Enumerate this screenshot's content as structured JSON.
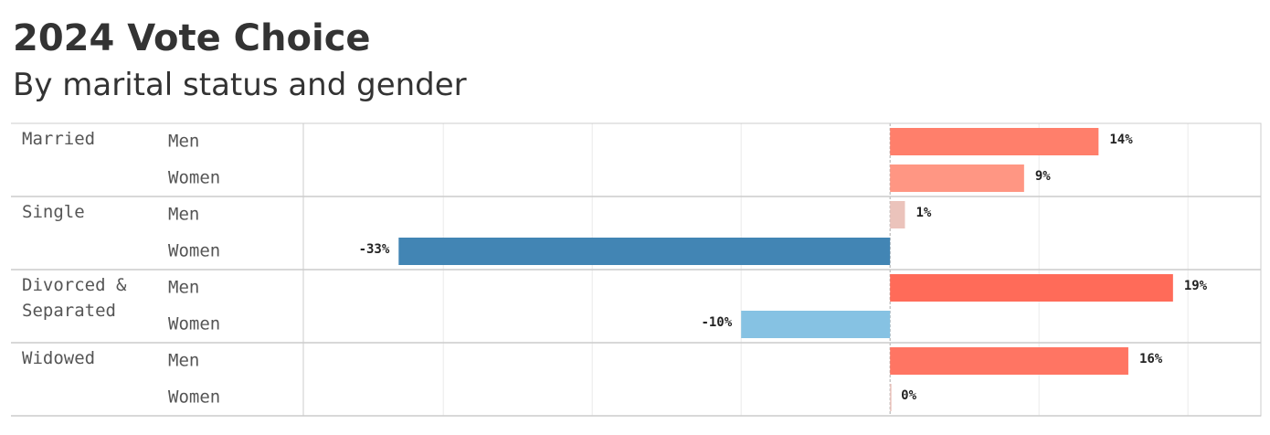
{
  "chart_data": {
    "type": "bar",
    "orientation": "horizontal",
    "title": "2024 Vote Choice",
    "subtitle": "By marital status and gender",
    "groups": [
      {
        "name": "Married",
        "categories": [
          "Men",
          "Women"
        ],
        "values": [
          14,
          9
        ],
        "value_labels": [
          "14%",
          "9%"
        ],
        "colors": [
          "#ff7f6b",
          "#ff9683"
        ]
      },
      {
        "name": "Single",
        "categories": [
          "Men",
          "Women"
        ],
        "values": [
          1,
          -33
        ],
        "value_labels": [
          "1%",
          "-33%"
        ],
        "colors": [
          "#ebc3bb",
          "#4285b4"
        ]
      },
      {
        "name": "Divorced & Separated",
        "categories": [
          "Men",
          "Women"
        ],
        "values": [
          19,
          -10
        ],
        "value_labels": [
          "19%",
          "-10%"
        ],
        "colors": [
          "#ff6b59",
          "#86c2e3"
        ]
      },
      {
        "name": "Widowed",
        "categories": [
          "Men",
          "Women"
        ],
        "values": [
          16,
          0
        ],
        "value_labels": [
          "16%",
          "0%"
        ],
        "colors": [
          "#ff7563",
          "#ebc3bb"
        ]
      }
    ],
    "xlim": [
      -39.4,
      24.9
    ],
    "xticks": [
      -30,
      -20,
      -10,
      0,
      10,
      20
    ],
    "grid": true
  }
}
